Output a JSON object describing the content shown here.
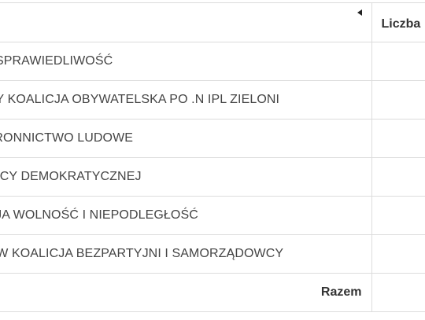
{
  "table": {
    "columns": {
      "name_header": "",
      "count_header": "Liczba"
    },
    "rows": [
      {
        "name": "PRAWO I SPRAWIEDLIWOŚĆ",
        "count": ""
      },
      {
        "name": "KOMITET WYBORCZY KOALICJA OBYWATELSKA PO .N IPL ZIELONI",
        "count": ""
      },
      {
        "name": "POLSKIE STRONNICTWO LUDOWE",
        "count": ""
      },
      {
        "name": "SOJUSZ LEWICY DEMOKRATYCZNEJ",
        "count": ""
      },
      {
        "name": "KONFEDERACJA WOLNOŚĆ I NIEPODLEGŁOŚĆ",
        "count": ""
      },
      {
        "name": "KOMITET WYBORCÓW KOALICJA BEZPARTYJNI I SAMORZĄDOWCY",
        "count": ""
      }
    ],
    "footer": {
      "label": "Razem",
      "count": ""
    }
  },
  "icons": {
    "sort": "sort-arrow-left-icon"
  }
}
